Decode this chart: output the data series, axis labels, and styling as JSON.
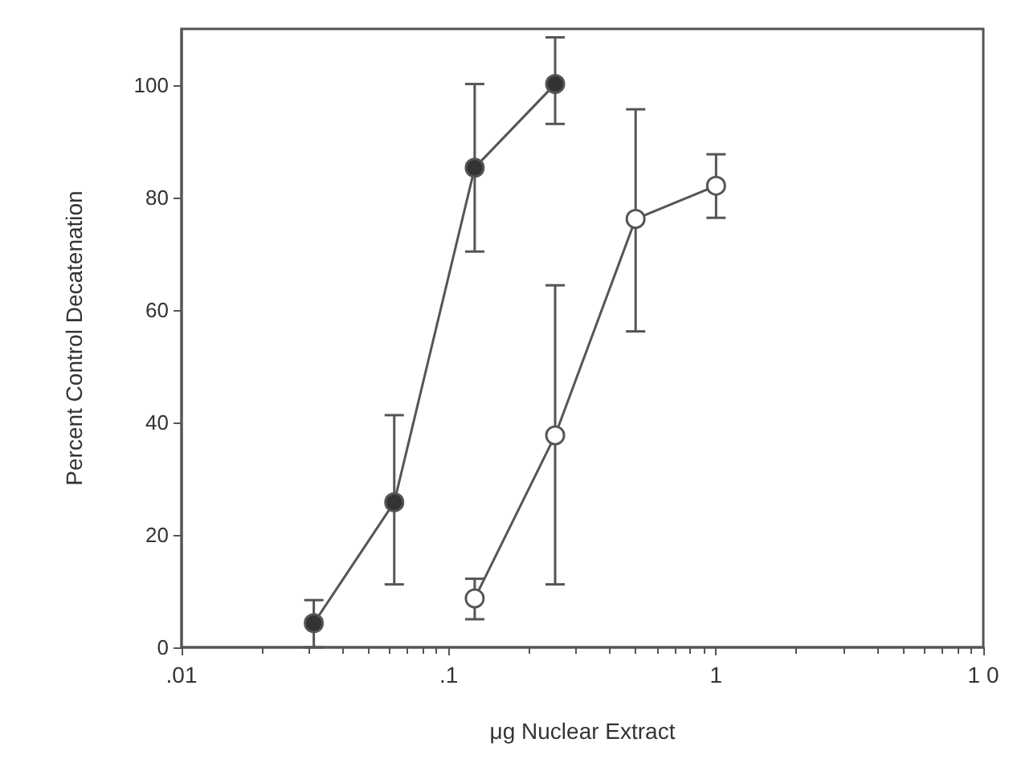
{
  "chart_data": {
    "type": "line",
    "xlabel": "μg Nuclear Extract",
    "ylabel": "Percent Control Decatenation",
    "log": "x",
    "xlim": [
      0.01,
      10
    ],
    "xticks": [
      {
        "value": 0.01,
        "label": ".01"
      },
      {
        "value": 0.1,
        "label": ".1"
      },
      {
        "value": 1,
        "label": "1"
      },
      {
        "value": 10,
        "label": "1 0"
      }
    ],
    "ylim": [
      0,
      110
    ],
    "yticks": [
      0,
      20,
      40,
      60,
      80,
      100
    ],
    "grid": false,
    "marker": "circle",
    "line_style": "solid",
    "series": [
      {
        "color": "#333333",
        "x": [
          0.03125,
          0.0625,
          0.125,
          0.25
        ],
        "values": [
          4.3,
          25.8,
          85.3,
          100.2
        ],
        "errors": [
          [
            0,
            8.4
          ],
          [
            11.2,
            41.3
          ],
          [
            70.4,
            100.2
          ],
          [
            93.1,
            108.5
          ]
        ]
      },
      {
        "color": "#ffffff",
        "x": [
          0.125,
          0.25,
          0.5,
          1
        ],
        "values": [
          8.7,
          37.7,
          76.2,
          82.1
        ],
        "errors": [
          [
            5,
            12.2
          ],
          [
            11.2,
            64.4
          ],
          [
            56.2,
            95.7
          ],
          [
            76.4,
            87.7
          ]
        ]
      }
    ]
  }
}
